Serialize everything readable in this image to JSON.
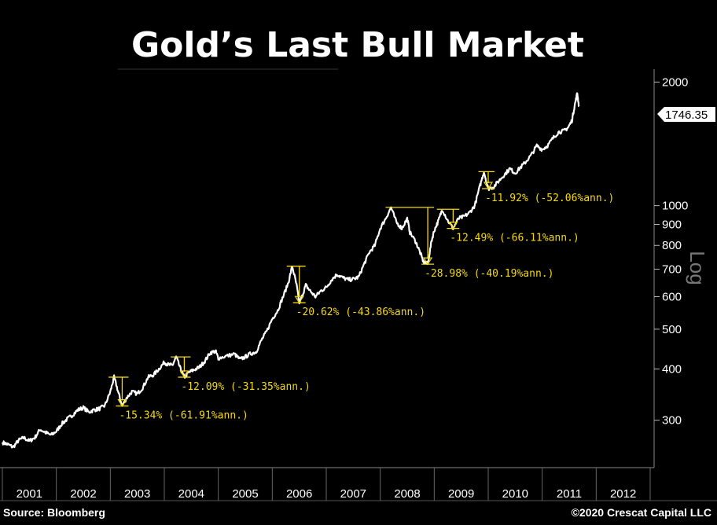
{
  "chart_data": {
    "type": "line",
    "title": "Gold’s Last Bull Market",
    "scale_label": "Log",
    "x_categories": [
      "2001",
      "2002",
      "2003",
      "2004",
      "2005",
      "2006",
      "2007",
      "2008",
      "2009",
      "2010",
      "2011",
      "2012"
    ],
    "y_scale": "log",
    "ylim": [
      230,
      2150
    ],
    "y_ticks": [
      2000,
      1000,
      900,
      800,
      700,
      600,
      500,
      400,
      300
    ],
    "last_value": "1746.35",
    "series": [
      {
        "name": "Gold",
        "points": [
          [
            2001.0,
            265
          ],
          [
            2001.1,
            262
          ],
          [
            2001.2,
            258
          ],
          [
            2001.3,
            268
          ],
          [
            2001.4,
            272
          ],
          [
            2001.5,
            267
          ],
          [
            2001.6,
            272
          ],
          [
            2001.7,
            285
          ],
          [
            2001.8,
            280
          ],
          [
            2001.9,
            276
          ],
          [
            2002.0,
            282
          ],
          [
            2002.1,
            294
          ],
          [
            2002.2,
            302
          ],
          [
            2002.3,
            309
          ],
          [
            2002.4,
            318
          ],
          [
            2002.5,
            322
          ],
          [
            2002.6,
            314
          ],
          [
            2002.7,
            318
          ],
          [
            2002.8,
            320
          ],
          [
            2002.9,
            326
          ],
          [
            2003.0,
            352
          ],
          [
            2003.07,
            382
          ],
          [
            2003.15,
            350
          ],
          [
            2003.22,
            325
          ],
          [
            2003.3,
            340
          ],
          [
            2003.4,
            352
          ],
          [
            2003.5,
            348
          ],
          [
            2003.6,
            360
          ],
          [
            2003.7,
            382
          ],
          [
            2003.8,
            387
          ],
          [
            2003.9,
            400
          ],
          [
            2004.0,
            415
          ],
          [
            2004.07,
            410
          ],
          [
            2004.15,
            408
          ],
          [
            2004.22,
            428
          ],
          [
            2004.3,
            400
          ],
          [
            2004.37,
            382
          ],
          [
            2004.45,
            392
          ],
          [
            2004.55,
            398
          ],
          [
            2004.65,
            404
          ],
          [
            2004.75,
            418
          ],
          [
            2004.85,
            438
          ],
          [
            2004.95,
            442
          ],
          [
            2005.0,
            425
          ],
          [
            2005.15,
            430
          ],
          [
            2005.3,
            435
          ],
          [
            2005.4,
            422
          ],
          [
            2005.5,
            428
          ],
          [
            2005.6,
            436
          ],
          [
            2005.7,
            440
          ],
          [
            2005.8,
            470
          ],
          [
            2005.9,
            495
          ],
          [
            2006.0,
            530
          ],
          [
            2006.1,
            555
          ],
          [
            2006.2,
            600
          ],
          [
            2006.3,
            650
          ],
          [
            2006.37,
            712
          ],
          [
            2006.45,
            640
          ],
          [
            2006.5,
            580
          ],
          [
            2006.55,
            600
          ],
          [
            2006.62,
            640
          ],
          [
            2006.7,
            620
          ],
          [
            2006.8,
            600
          ],
          [
            2006.9,
            620
          ],
          [
            2007.0,
            632
          ],
          [
            2007.1,
            660
          ],
          [
            2007.2,
            680
          ],
          [
            2007.3,
            668
          ],
          [
            2007.4,
            660
          ],
          [
            2007.5,
            662
          ],
          [
            2007.6,
            670
          ],
          [
            2007.7,
            720
          ],
          [
            2007.8,
            770
          ],
          [
            2007.9,
            800
          ],
          [
            2008.0,
            880
          ],
          [
            2008.1,
            930
          ],
          [
            2008.2,
            990
          ],
          [
            2008.3,
            910
          ],
          [
            2008.4,
            880
          ],
          [
            2008.5,
            930
          ],
          [
            2008.55,
            860
          ],
          [
            2008.65,
            820
          ],
          [
            2008.72,
            780
          ],
          [
            2008.8,
            730
          ],
          [
            2008.88,
            720
          ],
          [
            2008.95,
            820
          ],
          [
            2009.0,
            870
          ],
          [
            2009.08,
            920
          ],
          [
            2009.15,
            980
          ],
          [
            2009.25,
            920
          ],
          [
            2009.35,
            880
          ],
          [
            2009.45,
            930
          ],
          [
            2009.55,
            940
          ],
          [
            2009.65,
            960
          ],
          [
            2009.75,
            1000
          ],
          [
            2009.85,
            1120
          ],
          [
            2009.92,
            1210
          ],
          [
            2010.0,
            1100
          ],
          [
            2010.1,
            1110
          ],
          [
            2010.2,
            1150
          ],
          [
            2010.3,
            1190
          ],
          [
            2010.4,
            1230
          ],
          [
            2010.5,
            1200
          ],
          [
            2010.6,
            1240
          ],
          [
            2010.7,
            1280
          ],
          [
            2010.8,
            1330
          ],
          [
            2010.9,
            1400
          ],
          [
            2011.0,
            1370
          ],
          [
            2011.1,
            1400
          ],
          [
            2011.2,
            1460
          ],
          [
            2011.3,
            1510
          ],
          [
            2011.4,
            1520
          ],
          [
            2011.48,
            1550
          ],
          [
            2011.55,
            1610
          ],
          [
            2011.6,
            1750
          ],
          [
            2011.65,
            1880
          ],
          [
            2011.68,
            1746
          ]
        ]
      }
    ],
    "drawdowns": [
      {
        "label": "-15.34% (-61.91%ann.)",
        "x_peak": 2003.07,
        "x_trough": 2003.22,
        "peak": 382,
        "trough": 325
      },
      {
        "label": "-12.09% (-31.35%ann.)",
        "x_peak": 2004.22,
        "x_trough": 2004.37,
        "peak": 428,
        "trough": 382
      },
      {
        "label": "-20.62% (-43.86%ann.)",
        "x_peak": 2006.37,
        "x_trough": 2006.5,
        "peak": 712,
        "trough": 580
      },
      {
        "label": "-28.98% (-40.19%ann.)",
        "x_peak": 2008.2,
        "x_trough": 2008.88,
        "peak": 990,
        "trough": 720
      },
      {
        "label": "-12.49% (-66.11%ann.)",
        "x_peak": 2009.15,
        "x_trough": 2009.35,
        "peak": 980,
        "trough": 880
      },
      {
        "label": "-11.92% (-52.06%ann.)",
        "x_peak": 2009.92,
        "x_trough": 2010.0,
        "peak": 1210,
        "trough": 1100
      }
    ]
  },
  "footer": {
    "source": "Source: Bloomberg",
    "copyright": "©2020 Crescat Capital LLC"
  }
}
